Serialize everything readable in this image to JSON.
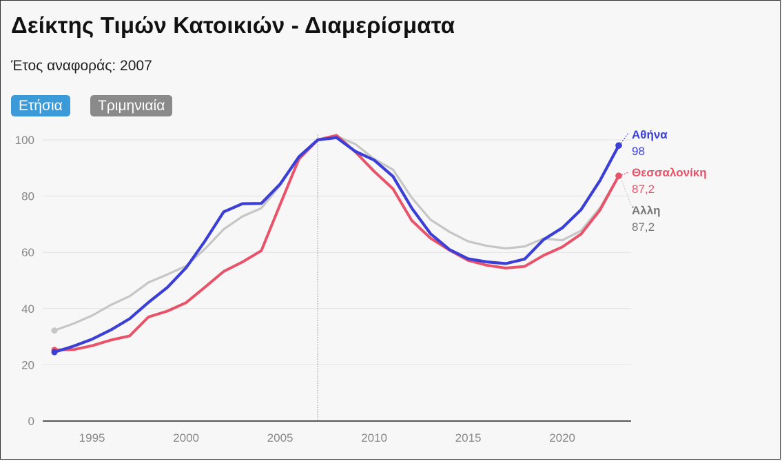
{
  "title": "Δείκτης Τιμών Κατοικιών - Διαμερίσματα",
  "subtitle": "Έτος αναφοράς: 2007",
  "buttons": {
    "annual": "Ετήσια",
    "quarterly": "Τριμηνιαία"
  },
  "colors": {
    "athens": "#3b3fd6",
    "thessaloniki": "#e8536a",
    "other": "#c6c6c6",
    "other_label": "#777777",
    "button_active": "#3d9ad8",
    "button_inactive": "#8a8a8a"
  },
  "chart_data": {
    "type": "line",
    "x": [
      1993,
      1994,
      1995,
      1996,
      1997,
      1998,
      1999,
      2000,
      2001,
      2002,
      2003,
      2004,
      2005,
      2006,
      2007,
      2008,
      2009,
      2010,
      2011,
      2012,
      2013,
      2014,
      2015,
      2016,
      2017,
      2018,
      2019,
      2020,
      2021,
      2022,
      2023
    ],
    "series": [
      {
        "name": "Άλλη",
        "values": [
          32.2,
          34.6,
          37.5,
          41.3,
          44.4,
          49.3,
          52.1,
          55.2,
          61.2,
          68.2,
          72.8,
          75.7,
          83.8,
          94.1,
          100,
          101.3,
          98.5,
          93.2,
          89.4,
          79.4,
          71.6,
          67.3,
          63.9,
          62.3,
          61.4,
          62.1,
          64.9,
          64.3,
          67.7,
          75.8,
          87.2
        ]
      },
      {
        "name": "Θεσσαλονίκη",
        "values": [
          25.3,
          25.4,
          26.8,
          28.8,
          30.3,
          37,
          39.1,
          42.1,
          47.6,
          53.2,
          56.6,
          60.6,
          77,
          93.2,
          100,
          101.6,
          95.7,
          88.8,
          82.6,
          71.3,
          65,
          60.8,
          57.1,
          55.4,
          54.4,
          55,
          58.9,
          61.9,
          66.5,
          75,
          87.2
        ]
      },
      {
        "name": "Αθήνα",
        "values": [
          24.5,
          26.6,
          29.1,
          32.4,
          36.4,
          42.2,
          47.5,
          54.5,
          64,
          74.4,
          77.3,
          77.4,
          84.3,
          94,
          100,
          100.8,
          95.9,
          92.8,
          87,
          75.7,
          66.6,
          61,
          57.7,
          56.6,
          56,
          57.6,
          64.5,
          68.7,
          75.2,
          85.5,
          98
        ]
      }
    ],
    "end_labels": [
      {
        "name": "Αθήνα",
        "value": "98"
      },
      {
        "name": "Θεσσαλονίκη",
        "value": "87,2"
      },
      {
        "name": "Άλλη",
        "value": "87,2"
      }
    ],
    "x_ticks": [
      1995,
      2000,
      2005,
      2010,
      2015,
      2020
    ],
    "y_ticks": [
      0,
      20,
      40,
      60,
      80,
      100
    ],
    "xlim": [
      1993,
      2023
    ],
    "ylim": [
      0,
      100
    ],
    "reference_line_x": 2007,
    "grid": "horizontal"
  }
}
